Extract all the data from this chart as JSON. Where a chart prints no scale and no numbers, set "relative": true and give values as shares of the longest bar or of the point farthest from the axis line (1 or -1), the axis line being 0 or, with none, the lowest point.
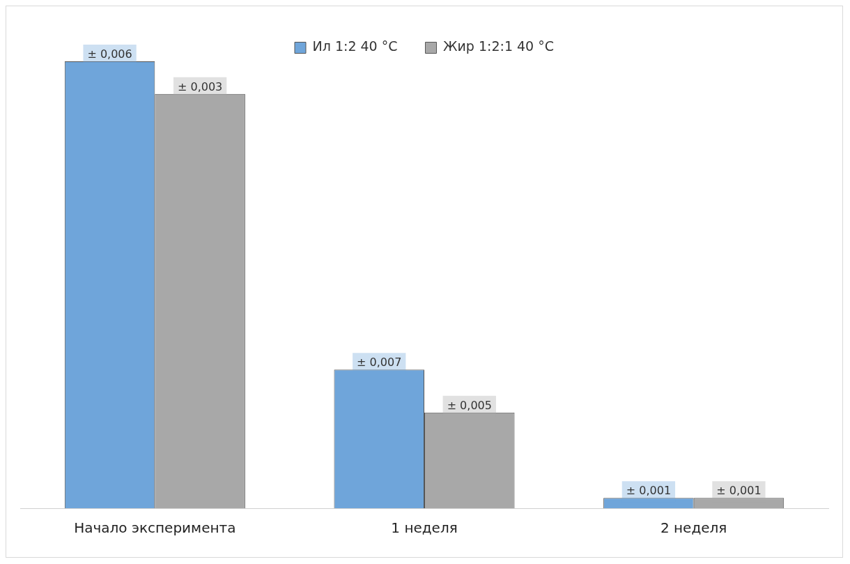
{
  "chart_data": {
    "type": "bar",
    "relative": true,
    "categories": [
      "Начало эксперимента",
      "1 неделя",
      "2 неделя"
    ],
    "series": [
      {
        "name": "Ил 1:2 40 °C",
        "color": "#6fa5da",
        "values": [
          1,
          0.31,
          0.023
        ]
      },
      {
        "name": "Жир 1:2:1 40 °C",
        "color": "#a8a8a8",
        "values": [
          0.927,
          0.214,
          0.023
        ]
      }
    ],
    "annotations": [
      "± 0,006",
      "± 0,003",
      "± 0,007",
      "± 0,005",
      "± 0,001",
      "± 0,001"
    ],
    "legend": "top",
    "grid": false
  }
}
